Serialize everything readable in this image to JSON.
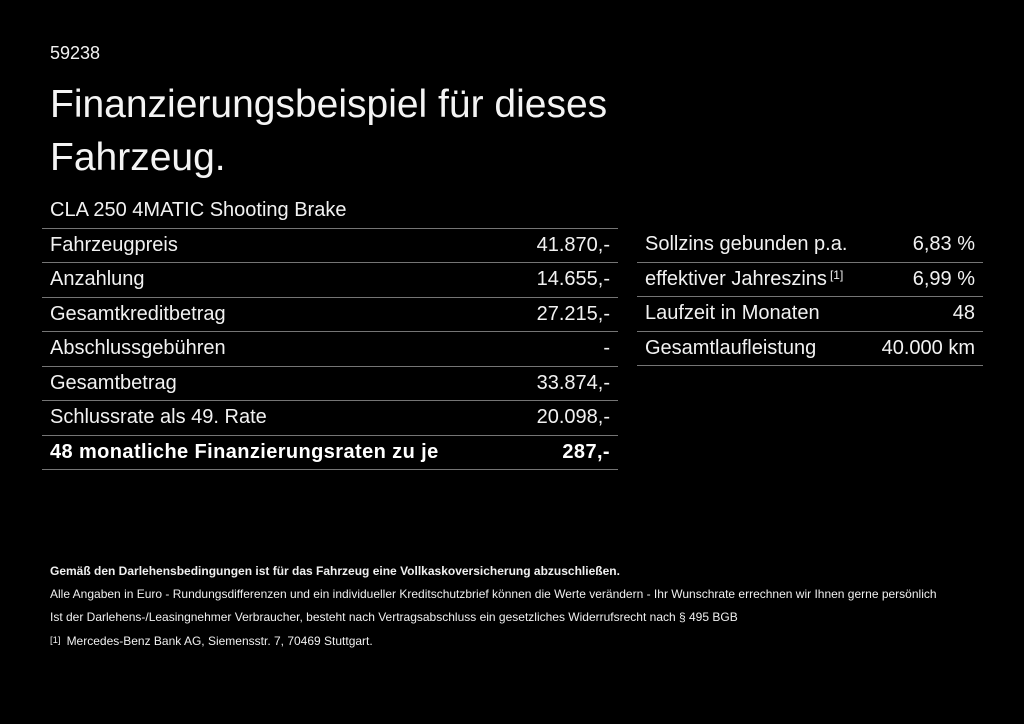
{
  "page": {
    "vehicle_id": "59238",
    "title": "Finanzierungsbeispiel für dieses Fahrzeug.",
    "subtitle": "CLA 250 4MATIC Shooting Brake"
  },
  "colors": {
    "background": "#000000",
    "text": "#f2f2f2",
    "divider": "#757575"
  },
  "financing_table": {
    "rows": [
      {
        "label": "Fahrzeugpreis",
        "value": "41.870,-"
      },
      {
        "label": "Anzahlung",
        "value": "14.655,-"
      },
      {
        "label": "Gesamtkreditbetrag",
        "value": "27.215,-"
      },
      {
        "label": "Abschlussgebühren",
        "value": "-"
      },
      {
        "label": "Gesamtbetrag",
        "value": "33.874,-"
      },
      {
        "label": "Schlussrate als 49. Rate",
        "value": "20.098,-"
      },
      {
        "label": "48 monatliche Finanzierungsraten zu je",
        "value": "287,-"
      }
    ]
  },
  "conditions_table": {
    "rows": [
      {
        "label": "Sollzins gebunden p.a.",
        "sup": "",
        "value": "6,83 %"
      },
      {
        "label": "effektiver Jahreszins",
        "sup": "[1]",
        "value": "6,99 %"
      },
      {
        "label": "Laufzeit in Monaten",
        "sup": "",
        "value": "48"
      },
      {
        "label": "Gesamtlaufleistung",
        "sup": "",
        "value": "40.000 km"
      }
    ]
  },
  "notes": {
    "insurance_bold": "Gemäß den Darlehensbedingungen ist für das Fahrzeug eine Vollkaskoversicherung abzuschließen.",
    "line2": "Alle Angaben in Euro - Rundungsdifferenzen und ein individueller Kreditschutzbrief können die Werte verändern - Ihr Wunschrate errechnen wir Ihnen gerne persönlich",
    "line3": "Ist der Darlehens-/Leasingnehmer Verbraucher, besteht nach Vertragsabschluss ein gesetzliches Widerrufsrecht nach § 495 BGB",
    "footnote_marker": "[1]",
    "footnote_text": "Mercedes-Benz Bank AG, Siemensstr. 7, 70469 Stuttgart."
  }
}
